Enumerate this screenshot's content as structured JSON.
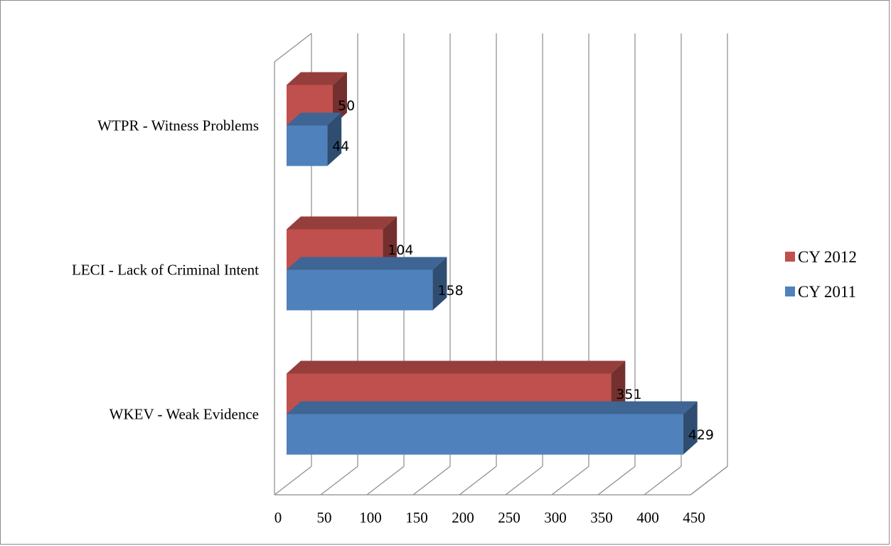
{
  "chart_data": {
    "type": "bar",
    "orientation": "horizontal",
    "style": "3d",
    "categories": [
      "WKEV - Weak Evidence",
      "LECI - Lack of Criminal Intent",
      "WTPR - Witness Problems"
    ],
    "series": [
      {
        "name": "CY 2012",
        "values": [
          351,
          104,
          50
        ],
        "color": "#c0504d"
      },
      {
        "name": "CY 2011",
        "values": [
          429,
          158,
          44
        ],
        "color": "#4f81bd"
      }
    ],
    "xlim": [
      0,
      450
    ],
    "x_ticks": [
      "0",
      "50",
      "100",
      "150",
      "200",
      "250",
      "300",
      "350",
      "400",
      "450"
    ],
    "grid": true,
    "legend_position": "right"
  }
}
